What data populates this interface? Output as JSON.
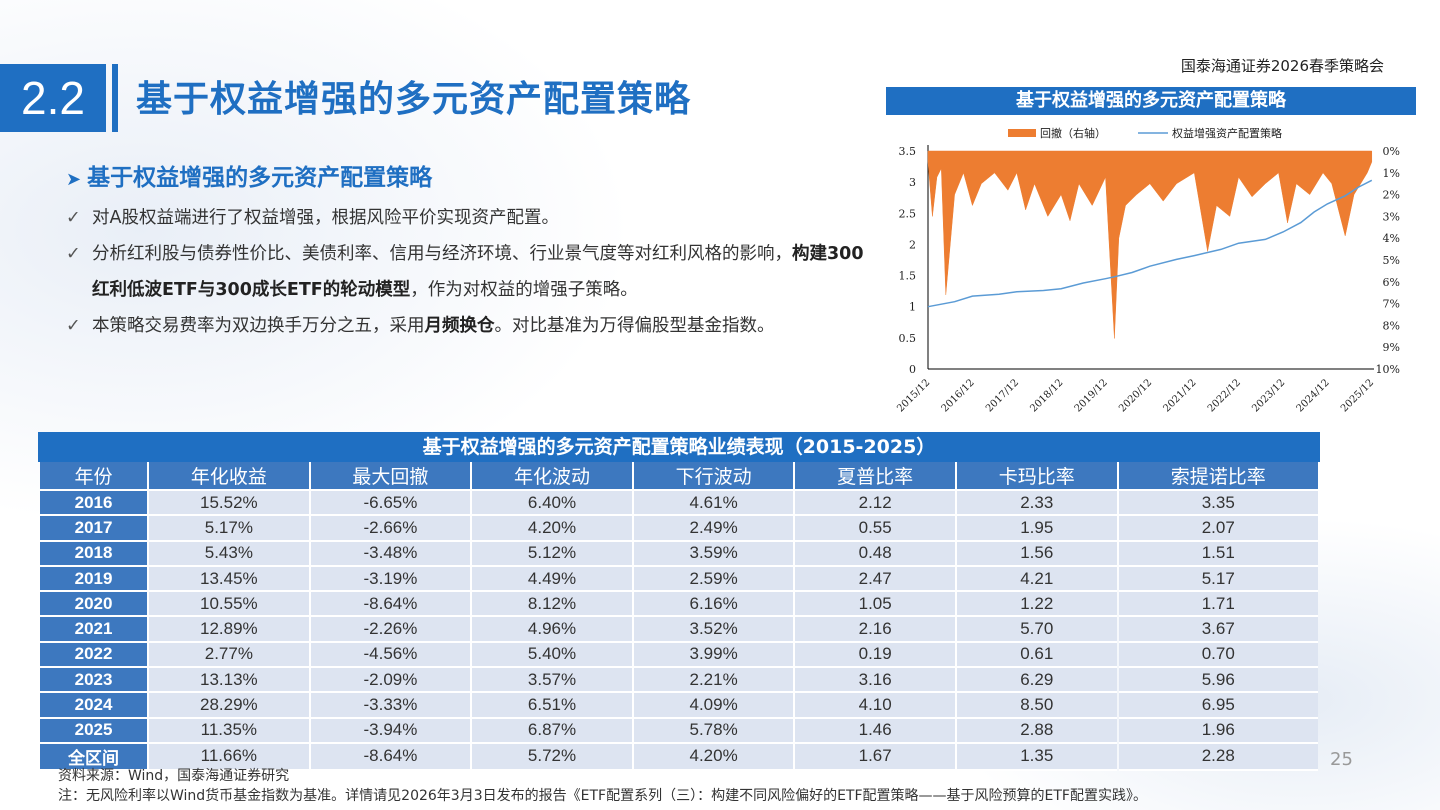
{
  "header": {
    "section_number": "2.2",
    "title": "基于权益增强的多元资产配置策略",
    "org": "国泰海通证券2026春季策略会"
  },
  "content": {
    "subheading": "基于权益增强的多元资产配置策略",
    "bullets": [
      {
        "pre": "对A股权益端进行了权益增强，根据风险平价实现资产配置。",
        "bold": "",
        "post": ""
      },
      {
        "pre": "分析红利股与债券性价比、美债利率、信用与经济环境、行业景气度等对红利风格的影响，",
        "bold": "构建300红利低波ETF与300成长ETF的轮动模型",
        "post": "，作为对权益的增强子策略。"
      },
      {
        "pre": "本策略交易费率为双边换手万分之五，采用",
        "bold": "月频换仓",
        "post": "。对比基准为万得偏股型基金指数。"
      }
    ]
  },
  "chart_data": {
    "type": "line",
    "title": "基于权益增强的多元资产配置策略",
    "legend": [
      "回撤（右轴）",
      "权益增强资产配置策略"
    ],
    "legend_placement": "top",
    "x_ticks": [
      "2015/12",
      "2016/12",
      "2017/12",
      "2018/12",
      "2019/12",
      "2020/12",
      "2021/12",
      "2022/12",
      "2023/12",
      "2024/12",
      "2025/12"
    ],
    "y_left_ticks": [
      "0",
      "0.5",
      "1",
      "1.5",
      "2",
      "2.5",
      "3",
      "3.5"
    ],
    "y_left_range": [
      0,
      3.5
    ],
    "y_right_ticks": [
      "0%",
      "1%",
      "2%",
      "3%",
      "4%",
      "5%",
      "6%",
      "7%",
      "8%",
      "9%",
      "10%"
    ],
    "y_right_range": [
      0,
      10
    ],
    "y_right_inverted": true,
    "series": [
      {
        "name": "权益增强资产配置策略",
        "axis": "left",
        "color": "#5b9bd5",
        "x": [
          2015.9,
          2016.5,
          2016.9,
          2017.5,
          2017.9,
          2018.5,
          2018.9,
          2019.4,
          2019.9,
          2020.1,
          2020.5,
          2020.9,
          2021.5,
          2021.9,
          2022.5,
          2022.9,
          2023.5,
          2023.9,
          2024.3,
          2024.6,
          2024.9,
          2025.3,
          2025.6,
          2025.9
        ],
        "y": [
          1.0,
          1.08,
          1.17,
          1.2,
          1.24,
          1.26,
          1.29,
          1.38,
          1.45,
          1.48,
          1.55,
          1.65,
          1.76,
          1.82,
          1.92,
          2.02,
          2.08,
          2.2,
          2.35,
          2.52,
          2.65,
          2.78,
          2.92,
          3.03
        ]
      },
      {
        "name": "回撤（右轴）",
        "axis": "right",
        "color": "#ed7d31",
        "x": [
          2015.9,
          2016.0,
          2016.1,
          2016.2,
          2016.3,
          2016.5,
          2016.7,
          2016.9,
          2017.1,
          2017.4,
          2017.7,
          2017.9,
          2018.1,
          2018.3,
          2018.6,
          2018.9,
          2019.1,
          2019.3,
          2019.6,
          2019.9,
          2020.1,
          2020.2,
          2020.35,
          2020.6,
          2020.9,
          2021.2,
          2021.5,
          2021.9,
          2022.2,
          2022.4,
          2022.7,
          2022.9,
          2023.2,
          2023.5,
          2023.8,
          2024.0,
          2024.2,
          2024.5,
          2024.8,
          2025.0,
          2025.3,
          2025.5,
          2025.8,
          2025.9
        ],
        "y": [
          0.5,
          3.0,
          1.2,
          0.8,
          6.6,
          2.0,
          1.0,
          2.5,
          1.5,
          1.0,
          1.8,
          1.0,
          2.7,
          1.5,
          3.0,
          2.0,
          3.2,
          1.5,
          2.5,
          1.2,
          8.6,
          4.0,
          2.5,
          2.0,
          1.5,
          2.3,
          1.5,
          1.0,
          4.6,
          2.5,
          3.0,
          1.2,
          2.1,
          1.5,
          1.0,
          3.3,
          1.5,
          2.0,
          1.0,
          1.5,
          3.9,
          2.0,
          1.0,
          0.5
        ]
      }
    ]
  },
  "perf_table": {
    "title": "基于权益增强的多元资产配置策略业绩表现（2015-2025）",
    "headers": [
      "年份",
      "年化收益",
      "最大回撤",
      "年化波动",
      "下行波动",
      "夏普比率",
      "卡玛比率",
      "索提诺比率"
    ],
    "rows": [
      [
        "2016",
        "15.52%",
        "-6.65%",
        "6.40%",
        "4.61%",
        "2.12",
        "2.33",
        "3.35"
      ],
      [
        "2017",
        "5.17%",
        "-2.66%",
        "4.20%",
        "2.49%",
        "0.55",
        "1.95",
        "2.07"
      ],
      [
        "2018",
        "5.43%",
        "-3.48%",
        "5.12%",
        "3.59%",
        "0.48",
        "1.56",
        "1.51"
      ],
      [
        "2019",
        "13.45%",
        "-3.19%",
        "4.49%",
        "2.59%",
        "2.47",
        "4.21",
        "5.17"
      ],
      [
        "2020",
        "10.55%",
        "-8.64%",
        "8.12%",
        "6.16%",
        "1.05",
        "1.22",
        "1.71"
      ],
      [
        "2021",
        "12.89%",
        "-2.26%",
        "4.96%",
        "3.52%",
        "2.16",
        "5.70",
        "3.67"
      ],
      [
        "2022",
        "2.77%",
        "-4.56%",
        "5.40%",
        "3.99%",
        "0.19",
        "0.61",
        "0.70"
      ],
      [
        "2023",
        "13.13%",
        "-2.09%",
        "3.57%",
        "2.21%",
        "3.16",
        "6.29",
        "5.96"
      ],
      [
        "2024",
        "28.29%",
        "-3.33%",
        "6.51%",
        "4.09%",
        "4.10",
        "8.50",
        "6.95"
      ],
      [
        "2025",
        "11.35%",
        "-3.94%",
        "6.87%",
        "5.78%",
        "1.46",
        "2.88",
        "1.96"
      ],
      [
        "全区间",
        "11.66%",
        "-8.64%",
        "5.72%",
        "4.20%",
        "1.67",
        "1.35",
        "2.28"
      ]
    ]
  },
  "footer": {
    "page_number": "25",
    "source": "资料来源：Wind，国泰海通证券研究",
    "note": "注：无风险利率以Wind货币基金指数为基准。详情请见2026年3月3日发布的报告《ETF配置系列（三）：构建不同风险偏好的ETF配置策略——基于风险预算的ETF配置实践》。"
  },
  "colors": {
    "accent": "#1f6fc2",
    "header_cell": "#3d78bf",
    "cell": "#dde4f1",
    "drawdown": "#ed7d31",
    "line": "#5b9bd5"
  }
}
